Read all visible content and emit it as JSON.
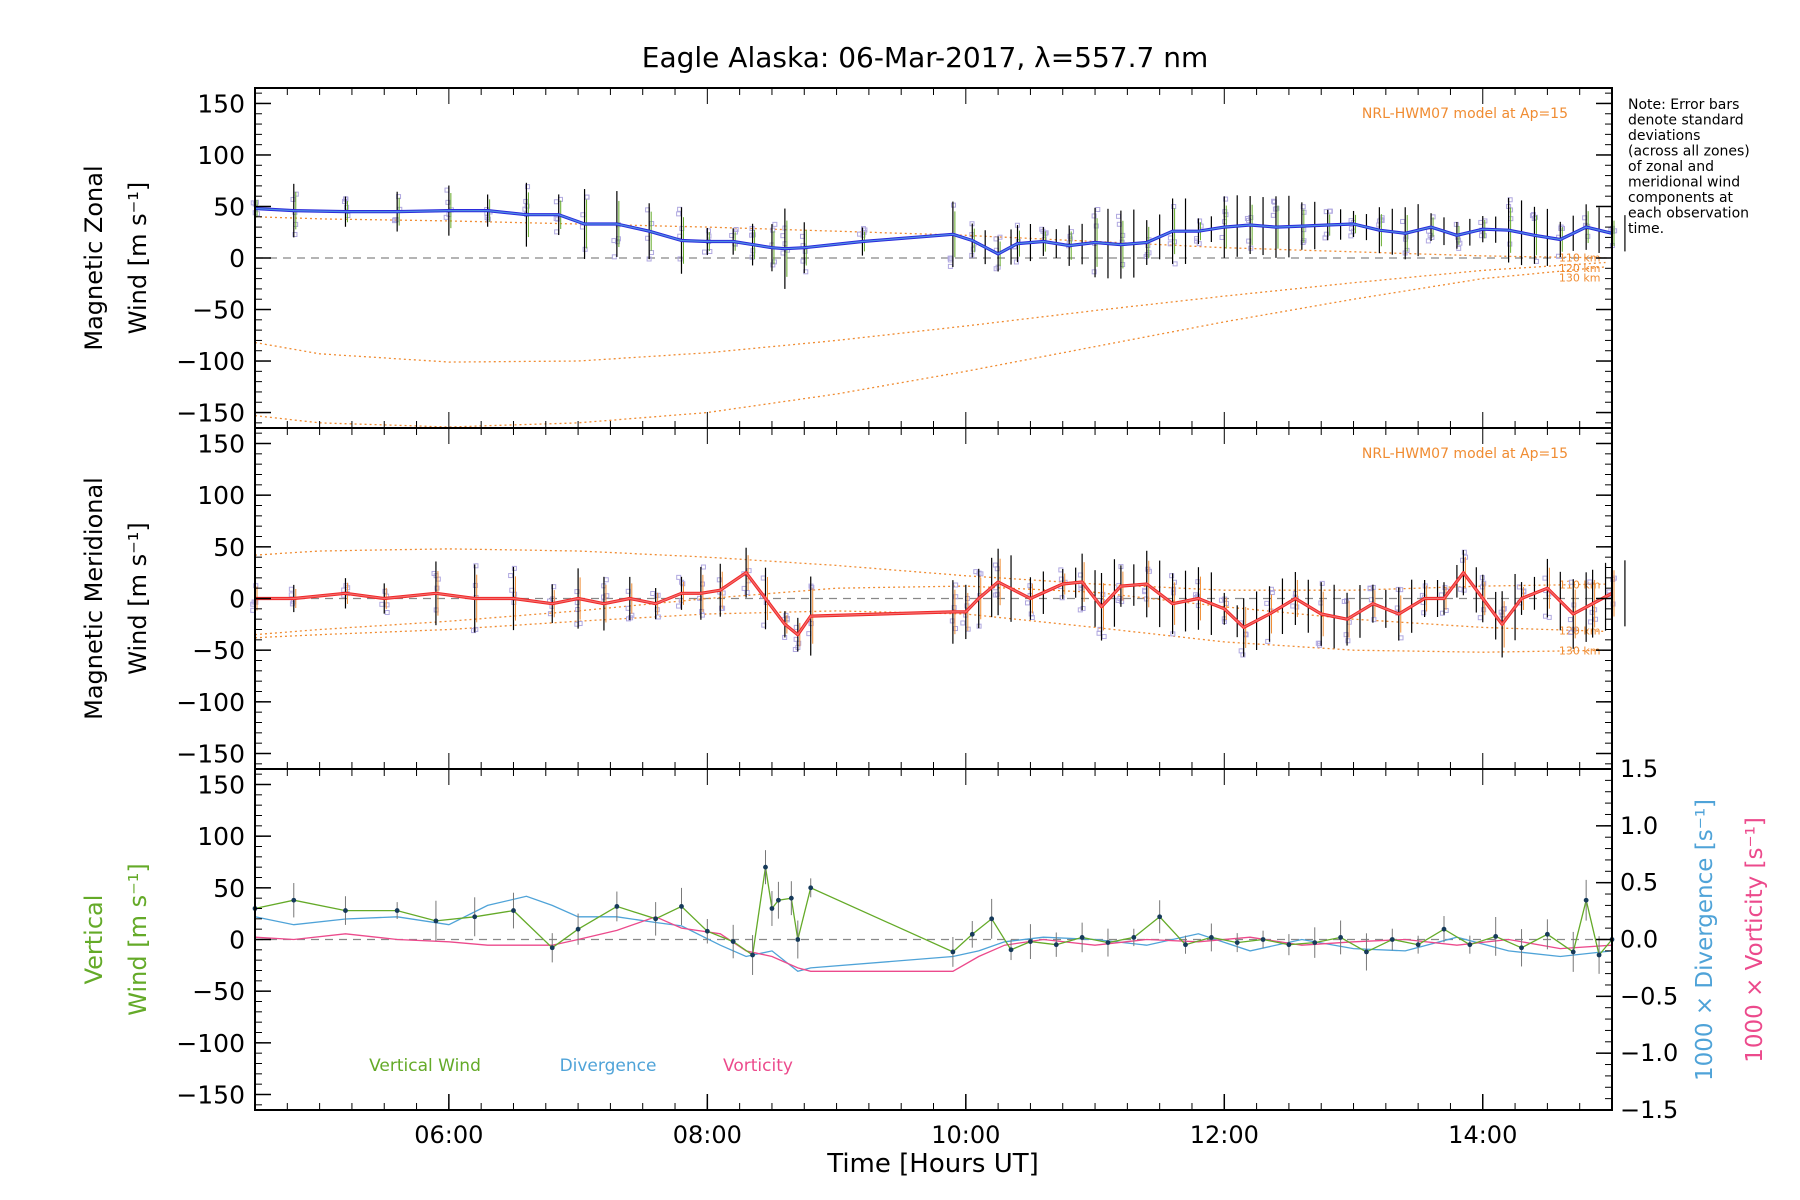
{
  "title": "Eagle Alaska: 06-Mar-2017, λ=557.7 nm",
  "note": [
    "Note: Error bars",
    "denote standard",
    "deviations",
    "(across all zones)",
    "of zonal and",
    "meridional wind",
    "components at",
    "each observation",
    "time."
  ],
  "colors": {
    "zonal": "#2b2bdc",
    "zonal_inner": "#5aa7e6",
    "meridional": "#f02828",
    "meridional_inner": "#f48080",
    "vertical": "#64aa28",
    "divergence": "#4fa3d8",
    "vorticity": "#ec4a8c",
    "model": "#f08c32",
    "zone": "#b0a8e0"
  },
  "chart_data": [
    {
      "type": "line",
      "panel": "zonal",
      "ylabel": "Magnetic Zonal Wind [m s⁻¹]",
      "ylabel_line1": "Magnetic Zonal",
      "ylabel_line2": "Wind [m s⁻¹]",
      "ylim": [
        -165,
        165
      ],
      "yticks": [
        "150",
        "100",
        "50",
        "0",
        "−50",
        "−100",
        "−150"
      ],
      "annotation": "NRL-HWM07 model at Ap=15",
      "model_levels": [
        "110 km",
        "120 km",
        "130 km"
      ],
      "series": [
        {
          "x": [
            4.5,
            4.8,
            5.2,
            5.6,
            6.0,
            6.3,
            6.6,
            6.85,
            7.05,
            7.3,
            7.55,
            7.8,
            8.0,
            8.2,
            8.35,
            8.5,
            8.6,
            8.75,
            9.2,
            9.9,
            10.05,
            10.25,
            10.4,
            10.6,
            10.8,
            11.0,
            11.2,
            11.4,
            11.6,
            11.8,
            12.0,
            12.2,
            12.4,
            12.6,
            12.8,
            13.0,
            13.2,
            13.4,
            13.6,
            13.8,
            14.0,
            14.2,
            14.4,
            14.6,
            14.8,
            15.0
          ],
          "y": [
            48,
            46,
            45,
            45,
            46,
            46,
            42,
            42,
            33,
            33,
            26,
            17,
            16,
            16,
            13,
            10,
            9,
            10,
            16,
            23,
            17,
            4,
            14,
            16,
            12,
            15,
            13,
            15,
            26,
            26,
            30,
            32,
            30,
            31,
            32,
            33,
            27,
            24,
            30,
            22,
            28,
            27,
            22,
            18,
            30,
            24
          ]
        }
      ],
      "model_series": [
        {
          "name": "110 km",
          "x": [
            4.5,
            5.0,
            6.0,
            7.0,
            8.0,
            9.0,
            10.0,
            11.0,
            12.0,
            13.0,
            14.0,
            15.0
          ],
          "y": [
            40,
            38,
            36,
            33,
            30,
            26,
            22,
            16,
            10,
            6,
            2,
            0
          ]
        },
        {
          "name": "120 km",
          "x": [
            4.5,
            5.0,
            6.0,
            7.0,
            8.0,
            9.0,
            10.0,
            11.0,
            12.0,
            13.0,
            14.0,
            15.0
          ],
          "y": [
            -82,
            -93,
            -101,
            -100,
            -92,
            -80,
            -66,
            -51,
            -37,
            -24,
            -12,
            -4
          ]
        },
        {
          "name": "130 km",
          "x": [
            4.5,
            5.0,
            6.0,
            7.0,
            8.0,
            9.0,
            10.0,
            11.0,
            12.0,
            13.0,
            14.0,
            15.0
          ],
          "y": [
            -153,
            -160,
            -164,
            -160,
            -150,
            -132,
            -110,
            -86,
            -62,
            -40,
            -20,
            -8
          ]
        }
      ]
    },
    {
      "type": "line",
      "panel": "meridional",
      "ylabel": "Magnetic Meridional Wind [m s⁻¹]",
      "ylabel_line1": "Magnetic Meridional",
      "ylabel_line2": "Wind [m s⁻¹]",
      "ylim": [
        -165,
        165
      ],
      "yticks": [
        "150",
        "100",
        "50",
        "0",
        "−50",
        "−100",
        "−150"
      ],
      "annotation": "NRL-HWM07 model at Ap=15",
      "model_levels": [
        "110 km",
        "120 km",
        "130 km"
      ],
      "series": [
        {
          "x": [
            4.5,
            4.8,
            5.2,
            5.5,
            5.9,
            6.2,
            6.5,
            6.8,
            7.0,
            7.2,
            7.4,
            7.6,
            7.8,
            7.95,
            8.1,
            8.3,
            8.45,
            8.6,
            8.7,
            8.8,
            9.9,
            10.0,
            10.1,
            10.25,
            10.5,
            10.75,
            10.9,
            11.05,
            11.2,
            11.4,
            11.6,
            11.8,
            12.0,
            12.15,
            12.35,
            12.55,
            12.75,
            12.95,
            13.15,
            13.35,
            13.55,
            13.7,
            13.85,
            14.0,
            14.15,
            14.3,
            14.5,
            14.7,
            14.85,
            15.0
          ],
          "y": [
            0,
            0,
            5,
            0,
            5,
            0,
            0,
            -5,
            0,
            -5,
            0,
            -5,
            5,
            5,
            8,
            25,
            0,
            -25,
            -35,
            -17,
            -13,
            -13,
            0,
            16,
            0,
            14,
            16,
            -8,
            12,
            14,
            -5,
            0,
            -10,
            -28,
            -15,
            0,
            -15,
            -20,
            -5,
            -15,
            0,
            0,
            25,
            0,
            -25,
            0,
            10,
            -15,
            -5,
            5
          ]
        }
      ],
      "model_series": [
        {
          "name": "110 km",
          "x": [
            4.5,
            5.0,
            6.0,
            7.0,
            8.0,
            9.0,
            10.0,
            11.0,
            12.0,
            13.0,
            14.0,
            15.0
          ],
          "y": [
            42,
            46,
            48,
            46,
            40,
            32,
            22,
            14,
            8,
            8,
            12,
            14
          ]
        },
        {
          "name": "120 km",
          "x": [
            4.5,
            5.0,
            6.0,
            7.0,
            8.0,
            9.0,
            10.0,
            11.0,
            12.0,
            13.0,
            14.0,
            15.0
          ],
          "y": [
            -35,
            -30,
            -22,
            -12,
            0,
            10,
            12,
            6,
            -8,
            -20,
            -28,
            -32
          ]
        },
        {
          "name": "130 km",
          "x": [
            4.5,
            5.0,
            6.0,
            7.0,
            8.0,
            9.0,
            10.0,
            11.0,
            12.0,
            13.0,
            14.0,
            15.0
          ],
          "y": [
            -38,
            -35,
            -30,
            -22,
            -15,
            -12,
            -15,
            -28,
            -42,
            -50,
            -52,
            -50
          ]
        }
      ]
    },
    {
      "type": "line",
      "panel": "vertical",
      "ylabel": "Vertical Wind [m s⁻¹]",
      "ylabel_line1": "Vertical",
      "ylabel_line2": "Wind [m s⁻¹]",
      "ylim": [
        -165,
        165
      ],
      "yticks": [
        "150",
        "100",
        "50",
        "0",
        "−50",
        "−100",
        "−150"
      ],
      "y2label_div": "1000 × Divergence [s⁻¹]",
      "y2label_vort": "1000 × Vorticity [s⁻¹]",
      "y2lim": [
        -1.5,
        1.5
      ],
      "y2ticks": [
        "1.5",
        "1.0",
        "0.5",
        "0.0",
        "−0.5",
        "−1.0",
        "−1.5"
      ],
      "legend": [
        "Vertical Wind",
        "Divergence",
        "Vorticity"
      ],
      "xticks": [
        "06:00",
        "08:00",
        "10:00",
        "12:00",
        "14:00"
      ],
      "xtick_values": [
        6,
        8,
        10,
        12,
        14
      ],
      "xlim": [
        4.5,
        15.0
      ],
      "xlabel": "Time [Hours UT]",
      "series": [
        {
          "name": "Vertical Wind",
          "x": [
            4.5,
            4.8,
            5.2,
            5.6,
            5.9,
            6.2,
            6.5,
            6.8,
            7.0,
            7.3,
            7.6,
            7.8,
            8.0,
            8.2,
            8.35,
            8.45,
            8.5,
            8.55,
            8.65,
            8.7,
            8.8,
            9.9,
            10.05,
            10.2,
            10.35,
            10.5,
            10.7,
            10.9,
            11.1,
            11.3,
            11.5,
            11.7,
            11.9,
            12.1,
            12.3,
            12.5,
            12.7,
            12.9,
            13.1,
            13.3,
            13.5,
            13.7,
            13.9,
            14.1,
            14.3,
            14.5,
            14.7,
            14.8,
            14.9,
            15.0
          ],
          "y": [
            30,
            38,
            28,
            28,
            18,
            22,
            28,
            -8,
            10,
            32,
            20,
            32,
            8,
            -2,
            -15,
            70,
            30,
            38,
            40,
            0,
            50,
            -12,
            5,
            20,
            -10,
            -2,
            -5,
            2,
            -3,
            2,
            22,
            -5,
            2,
            -3,
            0,
            -5,
            -3,
            2,
            -12,
            0,
            -5,
            10,
            -5,
            3,
            -8,
            5,
            -12,
            38,
            -15,
            0
          ]
        },
        {
          "name": "Divergence",
          "x": [
            4.5,
            4.8,
            5.2,
            5.6,
            6.0,
            6.3,
            6.6,
            6.8,
            7.0,
            7.3,
            7.6,
            7.8,
            8.1,
            8.3,
            8.5,
            8.7,
            8.8,
            9.9,
            10.1,
            10.3,
            10.6,
            11.0,
            11.4,
            11.8,
            12.2,
            12.6,
            13.0,
            13.4,
            13.8,
            14.2,
            14.6,
            15.0
          ],
          "y": [
            0.2,
            0.13,
            0.18,
            0.2,
            0.13,
            0.3,
            0.38,
            0.3,
            0.2,
            0.2,
            0.15,
            0.12,
            -0.05,
            -0.15,
            -0.1,
            -0.28,
            -0.25,
            -0.15,
            -0.1,
            -0.02,
            0.02,
            0.0,
            -0.05,
            0.05,
            -0.1,
            0.0,
            -0.08,
            -0.1,
            0.02,
            -0.1,
            -0.15,
            -0.1
          ]
        },
        {
          "name": "Vorticity",
          "x": [
            4.5,
            4.8,
            5.2,
            5.6,
            6.0,
            6.3,
            6.6,
            6.8,
            7.0,
            7.3,
            7.6,
            7.8,
            8.1,
            8.3,
            8.5,
            8.7,
            8.8,
            9.9,
            10.1,
            10.3,
            10.6,
            11.0,
            11.4,
            11.8,
            12.2,
            12.6,
            13.0,
            13.4,
            13.8,
            14.2,
            14.6,
            15.0
          ],
          "y": [
            0.02,
            0.0,
            0.05,
            0.0,
            -0.02,
            -0.05,
            -0.05,
            -0.05,
            0.0,
            0.08,
            0.2,
            0.1,
            0.05,
            -0.1,
            -0.15,
            -0.25,
            -0.28,
            -0.28,
            -0.15,
            -0.05,
            0.0,
            -0.05,
            0.0,
            -0.02,
            0.02,
            -0.05,
            -0.02,
            0.0,
            -0.05,
            0.0,
            -0.08,
            -0.05
          ]
        }
      ]
    }
  ]
}
